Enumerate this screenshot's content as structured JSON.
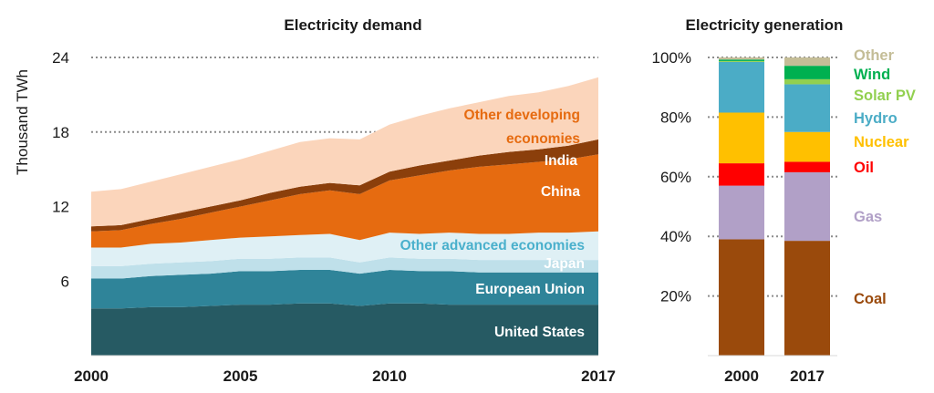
{
  "chart_data": [
    {
      "type": "area",
      "title": "Electricity demand",
      "ylabel": "Thousand TWh",
      "xlabel": "",
      "ylim": [
        0,
        24
      ],
      "yticks": [
        6,
        12,
        18,
        24
      ],
      "xticks": [
        2000,
        2005,
        2010,
        2017
      ],
      "grid": "horizontal dotted",
      "stacked": true,
      "x": [
        2000,
        2001,
        2002,
        2003,
        2004,
        2005,
        2006,
        2007,
        2008,
        2009,
        2010,
        2011,
        2012,
        2013,
        2014,
        2015,
        2016,
        2017
      ],
      "series": [
        {
          "name": "United States",
          "color": "#265a63",
          "label_color": "#ffffff",
          "values": [
            3.8,
            3.8,
            3.9,
            3.9,
            4.0,
            4.1,
            4.1,
            4.2,
            4.2,
            4.0,
            4.2,
            4.2,
            4.1,
            4.1,
            4.1,
            4.1,
            4.1,
            4.1
          ]
        },
        {
          "name": "European Union",
          "color": "#2f8499",
          "label_color": "#ffffff",
          "values": [
            2.4,
            2.4,
            2.5,
            2.6,
            2.6,
            2.7,
            2.7,
            2.7,
            2.7,
            2.6,
            2.7,
            2.6,
            2.7,
            2.6,
            2.6,
            2.6,
            2.6,
            2.6
          ]
        },
        {
          "name": "Japan",
          "color": "#bfe0ea",
          "label_color": "#ffffff",
          "values": [
            1.0,
            1.0,
            1.0,
            1.0,
            1.0,
            1.0,
            1.0,
            1.0,
            1.0,
            0.9,
            1.0,
            1.0,
            1.0,
            1.0,
            1.0,
            1.0,
            1.0,
            1.0
          ]
        },
        {
          "name": "Other advanced economies",
          "color": "#dff0f5",
          "label_color": "#4ab0cc",
          "values": [
            1.5,
            1.5,
            1.6,
            1.6,
            1.7,
            1.7,
            1.8,
            1.8,
            1.9,
            1.8,
            2.0,
            2.0,
            2.1,
            2.1,
            2.1,
            2.2,
            2.2,
            2.3
          ]
        },
        {
          "name": "China",
          "color": "#e66b10",
          "label_color": "#ffffff",
          "values": [
            1.3,
            1.4,
            1.6,
            1.9,
            2.2,
            2.5,
            2.9,
            3.3,
            3.5,
            3.7,
            4.2,
            4.7,
            5.0,
            5.4,
            5.6,
            5.7,
            5.9,
            6.2
          ]
        },
        {
          "name": "India",
          "color": "#8b3f0b",
          "label_color": "#ffffff",
          "values": [
            0.4,
            0.4,
            0.4,
            0.5,
            0.5,
            0.5,
            0.6,
            0.6,
            0.6,
            0.7,
            0.7,
            0.8,
            0.8,
            0.9,
            1.0,
            1.0,
            1.1,
            1.2
          ]
        },
        {
          "name": "Other developing economies",
          "color": "#fbd5bb",
          "label_color": "#e66b10",
          "values": [
            2.8,
            2.9,
            3.0,
            3.1,
            3.2,
            3.3,
            3.4,
            3.6,
            3.6,
            3.7,
            3.8,
            4.0,
            4.2,
            4.3,
            4.5,
            4.6,
            4.8,
            5.0
          ]
        }
      ]
    },
    {
      "type": "bar",
      "title": "Electricity generation",
      "stacked": true,
      "categories": [
        "2000",
        "2017"
      ],
      "ylim": [
        0,
        100
      ],
      "yticks": [
        "20%",
        "40%",
        "60%",
        "80%",
        "100%"
      ],
      "grid": "horizontal dotted",
      "series": [
        {
          "name": "Coal",
          "color": "#9a4a0c",
          "values": [
            39,
            38.5
          ]
        },
        {
          "name": "Gas",
          "color": "#b1a0c7",
          "values": [
            18,
            23
          ]
        },
        {
          "name": "Oil",
          "color": "#ff0000",
          "values": [
            7.5,
            3.5
          ]
        },
        {
          "name": "Nuclear",
          "color": "#ffc000",
          "values": [
            17,
            10
          ]
        },
        {
          "name": "Hydro",
          "color": "#4bacc6",
          "values": [
            17,
            16
          ]
        },
        {
          "name": "Solar PV",
          "color": "#92d050",
          "values": [
            0.3,
            1.7
          ]
        },
        {
          "name": "Wind",
          "color": "#00b050",
          "values": [
            0.5,
            4.5
          ]
        },
        {
          "name": "Other",
          "color": "#c4bd97",
          "values": [
            0.7,
            2.8
          ]
        }
      ]
    }
  ]
}
